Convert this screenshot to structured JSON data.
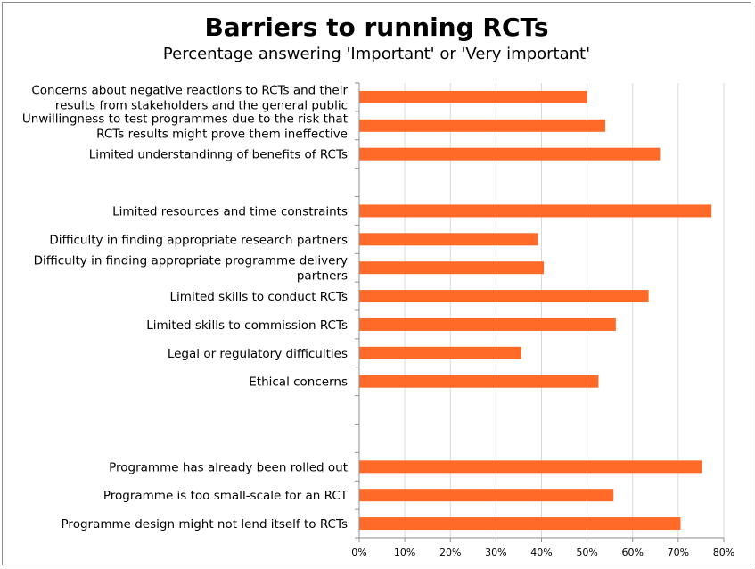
{
  "chart_data": {
    "type": "bar",
    "orientation": "horizontal",
    "title": "Barriers to running RCTs",
    "subtitle": "Percentage answering 'Important' or 'Very important'",
    "categories": [
      [
        "Concerns about negative reactions to RCTs and their",
        "results from stakeholders and the general public"
      ],
      [
        "Unwillingness to test programmes due to the risk that",
        "RCTs results might prove them ineffective"
      ],
      [
        "Limited understandinng of benefits of RCTs"
      ],
      [
        ""
      ],
      [
        "Limited resources and time constraints"
      ],
      [
        "Difficulty in finding appropriate research partners"
      ],
      [
        "Difficulty in finding  appropriate programme delivery",
        "partners"
      ],
      [
        "Limited skills to conduct RCTs"
      ],
      [
        "Limited skills to commission RCTs"
      ],
      [
        "Legal or regulatory difficulties"
      ],
      [
        "Ethical concerns"
      ],
      [
        ""
      ],
      [
        ""
      ],
      [
        "Programme has already been rolled out"
      ],
      [
        "Programme is too small-scale for an RCT"
      ],
      [
        "Programme design might not lend itself to RCTs"
      ]
    ],
    "values": [
      50,
      54,
      66,
      null,
      77.3,
      39.2,
      40.5,
      63.5,
      56.3,
      35.5,
      52.5,
      null,
      null,
      75.2,
      55.8,
      70.5
    ],
    "xlim": [
      0,
      80
    ],
    "xticks": [
      "0%",
      "10%",
      "20%",
      "30%",
      "40%",
      "50%",
      "60%",
      "70%",
      "80%"
    ],
    "grid": true,
    "bar_color": "#ff6a28",
    "grid_color": "#d9d9d9",
    "axis_color": "#8c8c8c"
  }
}
